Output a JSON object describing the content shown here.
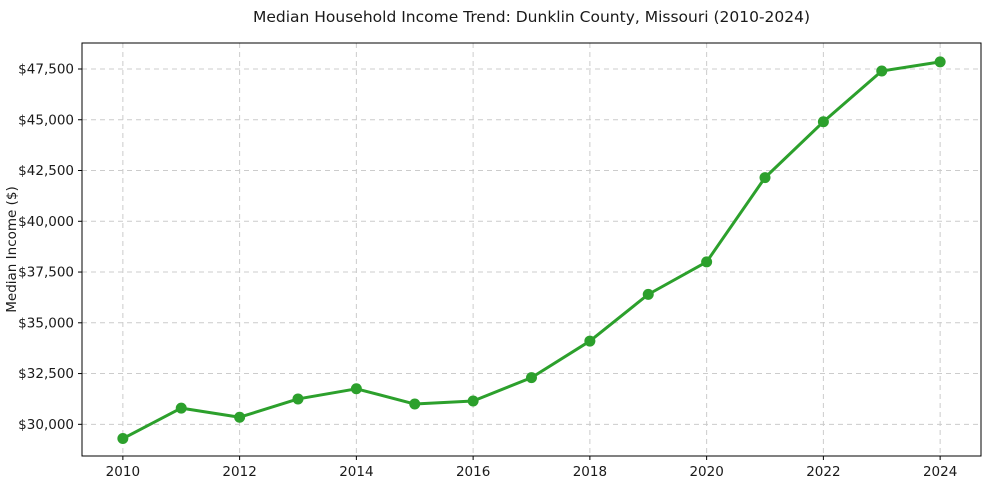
{
  "figure": {
    "background_color": "#ffffff",
    "text_color": "#1a1a1a"
  },
  "chart_data": {
    "type": "line",
    "title": "Median Household Income Trend: Dunklin County, Missouri (2010-2024)",
    "xlabel": "",
    "ylabel": "Median Income ($)",
    "x": [
      2010,
      2011,
      2012,
      2013,
      2014,
      2015,
      2016,
      2017,
      2018,
      2019,
      2020,
      2021,
      2022,
      2023,
      2024
    ],
    "series": [
      {
        "name": "Median Household Income",
        "values": [
          29300,
          30800,
          30350,
          31250,
          31750,
          31000,
          31150,
          32300,
          34100,
          36400,
          38000,
          42150,
          44900,
          47400,
          47850
        ]
      }
    ],
    "xlim": [
      2009.3,
      2024.7
    ],
    "ylim": [
      28440,
      48780
    ],
    "xticks": {
      "values": [
        2010,
        2012,
        2014,
        2016,
        2018,
        2020,
        2022,
        2024
      ],
      "labels": [
        "2010",
        "2012",
        "2014",
        "2016",
        "2018",
        "2020",
        "2022",
        "2024"
      ]
    },
    "yticks": {
      "values": [
        30000,
        32500,
        35000,
        37500,
        40000,
        42500,
        45000,
        47500
      ],
      "labels": [
        "$30,000",
        "$32,500",
        "$35,000",
        "$37,500",
        "$40,000",
        "$42,500",
        "$45,000",
        "$47,500"
      ]
    },
    "grid": true,
    "grid_style": "dashed",
    "legend_position": "none",
    "style": {
      "line_color": "#2ca02c",
      "marker_color": "#2ca02c",
      "marker_shape": "circle",
      "grid_color": "#cccccc",
      "spine_color": "#000000"
    }
  }
}
